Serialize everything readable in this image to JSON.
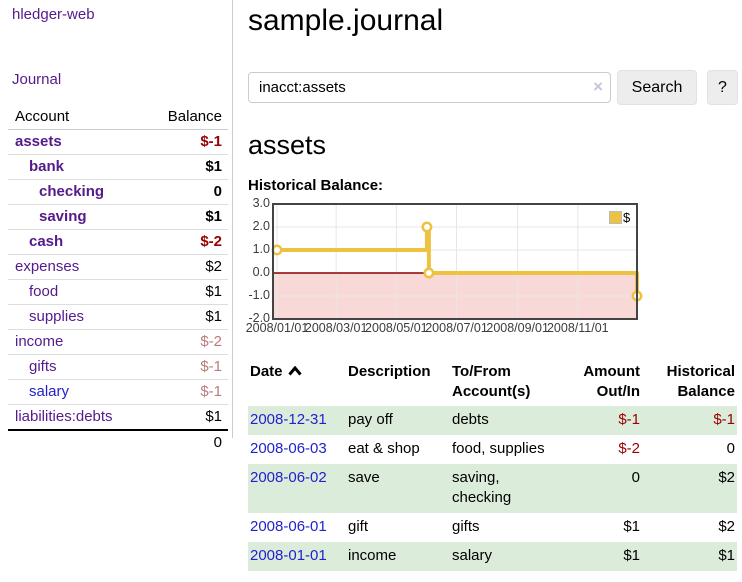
{
  "app": {
    "brand": "hledger-web",
    "nav_journal": "Journal"
  },
  "sidebar": {
    "header": {
      "account": "Account",
      "balance": "Balance"
    },
    "accounts": [
      {
        "name": "assets",
        "level": 1,
        "bold": true,
        "balance": "$-1",
        "balance_style": "neg-strong"
      },
      {
        "name": "bank",
        "level": 2,
        "bold": true,
        "balance": "$1",
        "balance_style": "pos"
      },
      {
        "name": "checking",
        "level": 3,
        "bold": true,
        "balance": "0",
        "balance_style": "pos"
      },
      {
        "name": "saving",
        "level": 3,
        "bold": true,
        "balance": "$1",
        "balance_style": "pos"
      },
      {
        "name": "cash",
        "level": 2,
        "bold": true,
        "balance": "$-2",
        "balance_style": "neg-strong"
      },
      {
        "name": "expenses",
        "level": 1,
        "bold": false,
        "balance": "$2",
        "balance_style": "pos"
      },
      {
        "name": "food",
        "level": 2,
        "bold": false,
        "balance": "$1",
        "balance_style": "pos"
      },
      {
        "name": "supplies",
        "level": 2,
        "bold": false,
        "balance": "$1",
        "balance_style": "pos"
      },
      {
        "name": "income",
        "level": 1,
        "bold": false,
        "balance": "$-2",
        "balance_style": "neg-muted"
      },
      {
        "name": "gifts",
        "level": 2,
        "bold": false,
        "balance": "$-1",
        "balance_style": "neg-muted"
      },
      {
        "name": "salary",
        "level": 2,
        "bold": false,
        "link_style": "blue",
        "balance": "$-1",
        "balance_style": "neg-muted"
      },
      {
        "name": "liabilities:debts",
        "level": 1,
        "bold": false,
        "balance": "$1",
        "balance_style": "pos"
      }
    ],
    "total": "0"
  },
  "header": {
    "title": "sample.journal"
  },
  "search": {
    "value": "inacct:assets",
    "clear_icon": "×",
    "button": "Search",
    "help_button": "?"
  },
  "account_page": {
    "title": "assets",
    "chart_label": "Historical Balance:"
  },
  "chart_data": {
    "type": "line",
    "title": "Historical Balance",
    "series": [
      {
        "name": "$",
        "color": "#edc240",
        "step": true,
        "points": [
          {
            "x": "2008-01-01",
            "y": 1
          },
          {
            "x": "2008-06-01",
            "y": 2
          },
          {
            "x": "2008-06-03",
            "y": 0
          },
          {
            "x": "2008-12-31",
            "y": -1
          }
        ]
      }
    ],
    "ylim": [
      -2.0,
      3.0
    ],
    "ytick_values": [
      3,
      2,
      1,
      0,
      -1,
      -2
    ],
    "yticks": [
      "3.0",
      "2.0",
      "1.0",
      "0.0",
      "-1.0",
      "-2.0"
    ],
    "xticks": [
      "2008/01/01",
      "2008/03/01",
      "2008/05/01",
      "2008/07/01",
      "2008/09/01",
      "2008/11/01"
    ],
    "negative_fill": "#f9d8d8",
    "zero_line_color": "#8b0000",
    "grid": true,
    "legend": [
      "$"
    ],
    "legend_position": "top-right"
  },
  "register": {
    "columns": [
      {
        "label": "Date",
        "sorted": "asc"
      },
      {
        "label": "Description"
      },
      {
        "label": "To/From Account(s)"
      },
      {
        "label": "Amount Out/In"
      },
      {
        "label": "Historical Balance"
      }
    ],
    "rows": [
      {
        "date": "2008-12-31",
        "description": "pay off",
        "accounts": "debts",
        "amount": "$-1",
        "amount_neg": true,
        "balance": "$-1",
        "balance_neg": true,
        "shade": true
      },
      {
        "date": "2008-06-03",
        "description": "eat & shop",
        "accounts": "food, supplies",
        "amount": "$-2",
        "amount_neg": true,
        "balance": "0",
        "balance_neg": false,
        "shade": false
      },
      {
        "date": "2008-06-02",
        "description": "save",
        "accounts": "saving, checking",
        "amount": "0",
        "amount_neg": false,
        "balance": "$2",
        "balance_neg": false,
        "shade": true
      },
      {
        "date": "2008-06-01",
        "description": "gift",
        "accounts": "gifts",
        "amount": "$1",
        "amount_neg": false,
        "balance": "$2",
        "balance_neg": false,
        "shade": false
      },
      {
        "date": "2008-01-01",
        "description": "income",
        "accounts": "salary",
        "amount": "$1",
        "amount_neg": false,
        "balance": "$1",
        "balance_neg": false,
        "shade": true
      }
    ]
  }
}
